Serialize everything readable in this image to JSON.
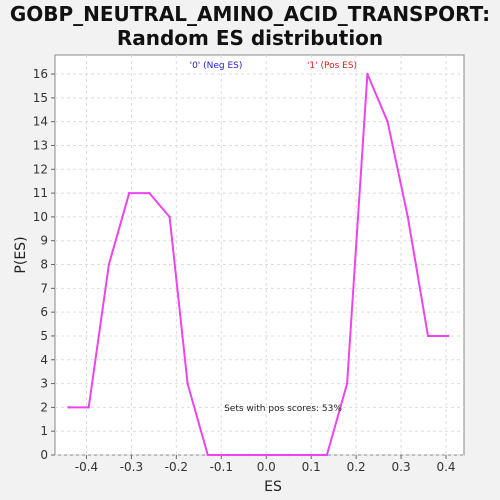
{
  "chart_data": {
    "type": "line",
    "title_line1": "GOBP_NEUTRAL_AMINO_ACID_TRANSPORT:",
    "title_line2": "Random ES distribution",
    "xlabel": "ES",
    "ylabel": "P(ES)",
    "xlim": [
      -0.47,
      0.44
    ],
    "ylim": [
      0,
      16.8
    ],
    "xticks": [
      "-0.4",
      "-0.3",
      "-0.2",
      "-0.1",
      "0.0",
      "0.1",
      "0.2",
      "0.3",
      "0.4"
    ],
    "yticks": [
      "0",
      "1",
      "2",
      "3",
      "4",
      "5",
      "6",
      "7",
      "8",
      "9",
      "10",
      "11",
      "12",
      "13",
      "14",
      "15",
      "16"
    ],
    "grid": true,
    "legend": [
      {
        "label": "'0' (Neg ES)",
        "color": "#2222cc"
      },
      {
        "label": "'1' (Pos ES)",
        "color": "#dd2222"
      }
    ],
    "annotation": "Sets with pos scores: 53%",
    "series": [
      {
        "color": "#ee44ee",
        "x": [
          -0.44,
          -0.395,
          -0.35,
          -0.305,
          -0.26,
          -0.215,
          -0.175,
          -0.13,
          -0.085,
          -0.04,
          0.005,
          0.05,
          0.095,
          0.135,
          0.18,
          0.225,
          0.27,
          0.315,
          0.36,
          0.405
        ],
        "y": [
          2,
          2,
          8,
          11,
          11,
          10,
          3,
          0,
          0,
          0,
          0,
          0,
          0,
          0,
          3,
          16,
          14,
          10,
          5,
          5
        ]
      }
    ]
  }
}
